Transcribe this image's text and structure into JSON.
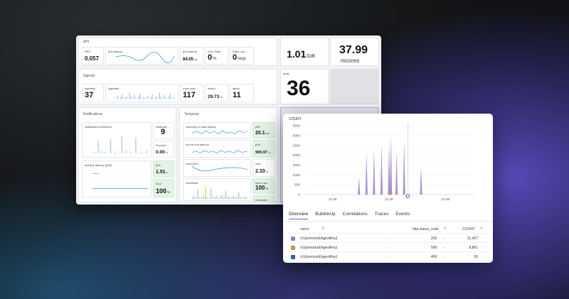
{
  "dashboard": {
    "api": {
      "title": "API",
      "rps_label": "RPS",
      "rps_value": "0.057",
      "p99_chart_label": "p99 latency",
      "p99_label": "p99 latency",
      "p99_value": "84.05",
      "p99_unit": "ms",
      "error_label": "Error Rate",
      "error_value": "0",
      "error_unit": "%",
      "rate_label": "Rate Limi...",
      "rate_value": "0",
      "rate_unit": "reqs"
    },
    "signals": {
      "title": "Signals",
      "ingested_label": "ingested",
      "ingested_value": "37",
      "ingested_chart_label": "ingested",
      "rules_label": "rules eval...",
      "rules_value": "117",
      "match_label": "match",
      "match_value": "29.73",
      "match_unit": "%",
      "alerts_label": "alerts",
      "alerts_value": "11"
    },
    "notifications": {
      "title": "Notifications",
      "deliveries_label": "Notification Deliveries",
      "notif_label": "Notificati...",
      "notif_value": "9",
      "provider_label": "Provider ...",
      "provider_value": "0.00",
      "provider_unit": "%",
      "delivery_label": "delivery latency (p99)",
      "p99_label": "p99",
      "p99_value": "1.51",
      "p99_unit": "s",
      "slo_label": "SLO",
      "slo_value": "100",
      "slo_unit": "%"
    },
    "temporal": {
      "title": "Temporal",
      "sched_label": "schedule to start latency",
      "sched_p99_label": "p99",
      "sched_p99_value": "20.1",
      "sched_p99_unit": "ms",
      "e2e_label": "end to end latency",
      "e2e_p99_label": "p99",
      "e2e_p99_value": "999.97",
      "e2e_p99_unit": "ms",
      "cloud_label": "cloud APS",
      "max_label": "max",
      "max_value": "2.33",
      "max_unit": "/s",
      "workflows_label": "workflows",
      "sync_label": "sync mat...",
      "sync_value": "100",
      "sync_unit": "%",
      "exhaust_label": "exhauste..."
    },
    "side": {
      "mem_value": "1.01",
      "mem_unit": "GiB",
      "cpu_value": "37.99",
      "cpu_unit": "mcores",
      "pods_label": "pods",
      "pods_value": "36"
    }
  },
  "count_panel": {
    "title": "COUNT",
    "tabs": [
      "Overview",
      "BubbleUp",
      "Correlations",
      "Traces",
      "Events"
    ],
    "active_tab": "Overview",
    "columns": {
      "name": "name",
      "status": "http.status_code",
      "count": "COUNT"
    },
    "rows": [
      {
        "color": "#9b7fc8",
        "name": "/v1/process/{ingestKey}",
        "dash": "--",
        "status": "202",
        "count": "31,427"
      },
      {
        "color": "#d98a4a",
        "name": "/v1/process/{ingestKey}",
        "dash": "--",
        "status": "500",
        "count": "8,861"
      },
      {
        "color": "#2f5fb0",
        "name": "/v1/process/{ingestKey}",
        "dash": "--",
        "status": "400",
        "count": "26"
      }
    ]
  },
  "chart_data": {
    "type": "area",
    "title": "COUNT",
    "y_ticks": [
      "3500",
      "3000",
      "2500",
      "2000",
      "1500",
      "1000",
      "500",
      "0"
    ],
    "x_ticks": [
      "11:00",
      "11:30",
      "12:00"
    ],
    "ylim": [
      0,
      3500
    ],
    "series": [
      {
        "name": "202",
        "color": "#9b7fc8",
        "x": [
          "11:14",
          "11:18",
          "11:22",
          "11:26",
          "11:30",
          "11:31",
          "11:34",
          "11:38",
          "11:47"
        ],
        "values": [
          900,
          2100,
          2300,
          2500,
          2550,
          3000,
          2200,
          2700,
          1400
        ]
      },
      {
        "name": "500",
        "color": "#d98a4a",
        "x": [
          "11:30",
          "11:31"
        ],
        "values": [
          300,
          500
        ]
      }
    ],
    "marker_x": "11:40"
  }
}
